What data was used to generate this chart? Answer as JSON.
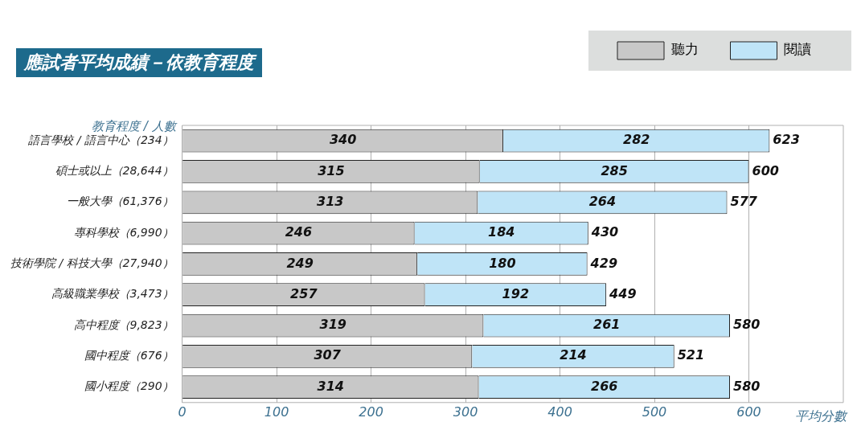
{
  "chart_data": {
    "type": "bar",
    "orientation": "horizontal",
    "stacked": true,
    "title": "應試者平均成績－依教育程度",
    "xlabel": "平均分數",
    "ylabel": "教育程度 / 人數",
    "categories": [
      "語言學校 / 語言中心（234）",
      "碩士或以上（28,644）",
      "一般大學（61,376）",
      "專科學校（6,990）",
      "技術學院 / 科技大學（27,940）",
      "高級職業學校（3,473）",
      "高中程度（9,823）",
      "國中程度（676）",
      "國小程度（290）"
    ],
    "series": [
      {
        "name": "聽力",
        "color": "#c8c8c8",
        "values": [
          340,
          315,
          313,
          246,
          249,
          257,
          319,
          307,
          314
        ]
      },
      {
        "name": "閱讀",
        "color": "#bfe4f7",
        "values": [
          282,
          285,
          264,
          184,
          180,
          192,
          261,
          214,
          266
        ]
      }
    ],
    "totals": [
      "623",
      "600",
      "577",
      "430",
      "429",
      "449",
      "580",
      "521",
      "580"
    ],
    "data_labels": true,
    "xlim": [
      0,
      700
    ],
    "xticks": [
      0,
      100,
      200,
      300,
      400,
      500,
      600
    ],
    "grid": "x",
    "legend": "top right"
  }
}
